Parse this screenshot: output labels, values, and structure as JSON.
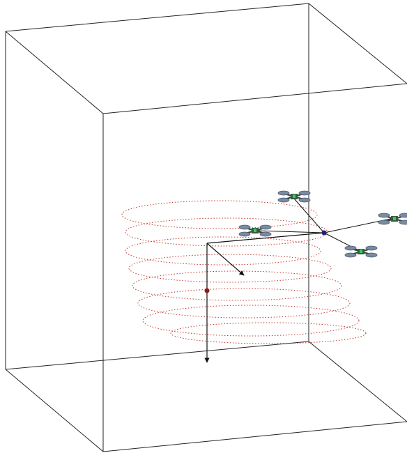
{
  "scene": {
    "type": "3d-simulation-view",
    "elements": [
      "workspace-box",
      "reference-frame",
      "trajectory",
      "swarm-center",
      "quadrotors"
    ]
  },
  "colors": {
    "background": "#ffffff",
    "box_edges": "#222222",
    "trajectory": "#c0392b",
    "axes": "#111111",
    "center_marker": "#1a237e",
    "origin_marker": "#8b1a1a",
    "drone_body": "#3a5a3a",
    "drone_rotor": "#7a8aa0",
    "drone_accent": "#2ecc71"
  },
  "quadrotors": [
    {
      "id": "quadrotor-1",
      "icon": "quadrotor-icon"
    },
    {
      "id": "quadrotor-2",
      "icon": "quadrotor-icon"
    },
    {
      "id": "quadrotor-3",
      "icon": "quadrotor-icon"
    },
    {
      "id": "quadrotor-4",
      "icon": "quadrotor-icon"
    }
  ]
}
